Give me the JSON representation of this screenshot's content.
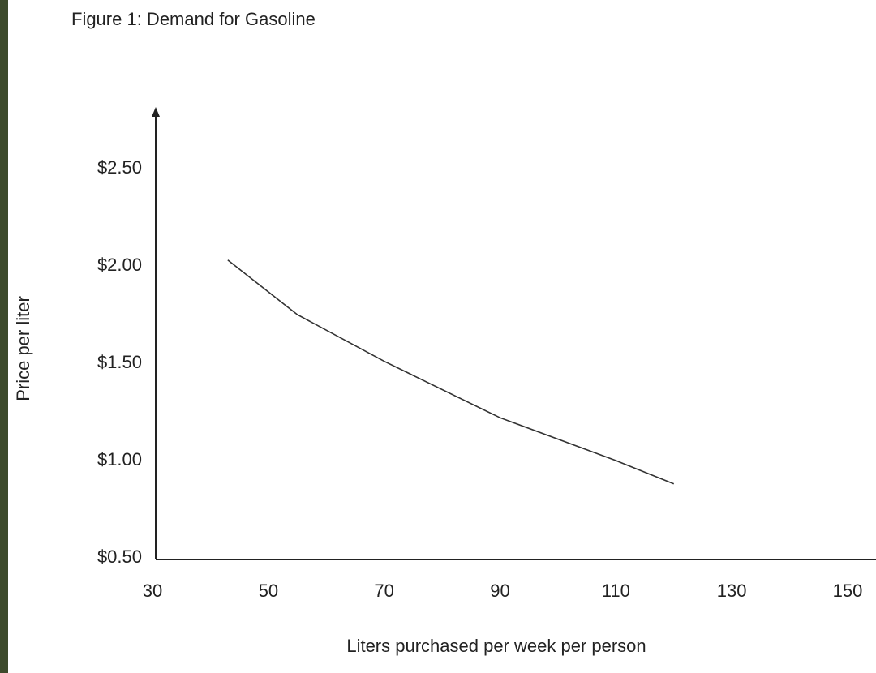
{
  "chart_data": {
    "type": "line",
    "title": "Figure 1: Demand for Gasoline",
    "x_label": "Liters purchased per week per person",
    "y_label": "Price per liter",
    "x": [
      43,
      55,
      70,
      90,
      110,
      120
    ],
    "series": [
      {
        "color": "#333333",
        "values": [
          2.03,
          1.75,
          1.51,
          1.22,
          1.0,
          0.88
        ]
      }
    ],
    "xlim": [
      30,
      150
    ],
    "xticks": [
      30,
      50,
      70,
      90,
      110,
      130,
      150
    ],
    "ylim": [
      0.5,
      2.75
    ],
    "yticks": [
      {
        "value": 0.5,
        "label": "$0.50"
      },
      {
        "value": 1.0,
        "label": "$1.00"
      },
      {
        "value": 1.5,
        "label": "$1.50"
      },
      {
        "value": 2.0,
        "label": "$2.00"
      },
      {
        "value": 2.5,
        "label": "$2.50"
      }
    ],
    "grid": false
  }
}
